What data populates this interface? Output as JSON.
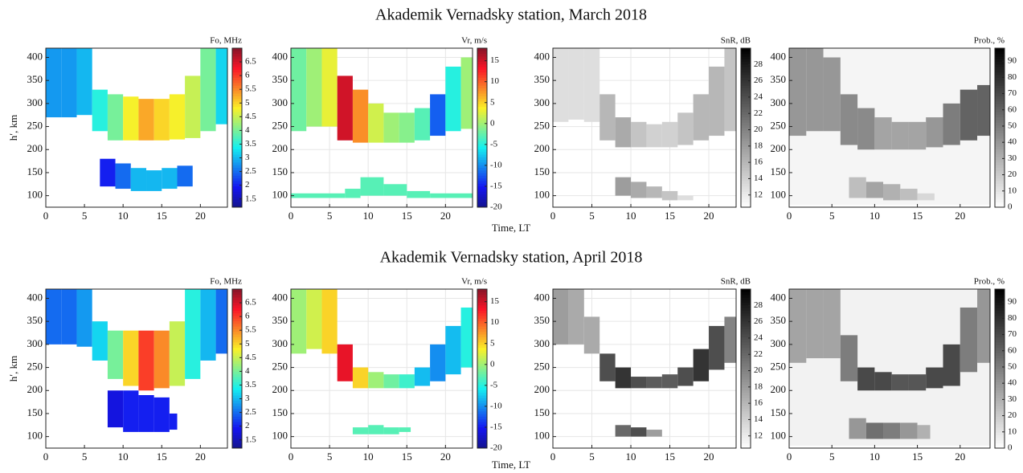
{
  "rows": [
    {
      "title": "Akademik Vernadsky station, March 2018",
      "x_label": "Time, LT"
    },
    {
      "title": "Akademik Vernadsky station, April 2018",
      "x_label": "Time, LT"
    }
  ],
  "chart_data": [
    {
      "type": "heatmap",
      "ylabel": "h′, km",
      "xlim": [
        0,
        23.5
      ],
      "ylim": [
        75,
        420
      ],
      "xticks": [
        0,
        5,
        10,
        15,
        20
      ],
      "yticks": [
        100,
        150,
        200,
        250,
        300,
        350,
        400
      ],
      "grid": false,
      "colorbar": {
        "label": "Fo, MHz",
        "lim": [
          1.2,
          7
        ],
        "ticks": [
          1.5,
          2,
          2.5,
          3,
          3.5,
          4,
          4.5,
          5,
          5.5,
          6,
          6.5
        ],
        "colormap": "jet"
      },
      "layers": [
        {
          "bins": [
            0,
            2,
            4,
            6,
            8,
            10,
            12,
            14,
            16,
            18,
            20,
            22,
            23.5
          ],
          "bottom": [
            270,
            270,
            275,
            240,
            220,
            220,
            220,
            220,
            222,
            225,
            240,
            255
          ],
          "top": [
            420,
            420,
            420,
            330,
            320,
            315,
            310,
            310,
            320,
            360,
            420,
            420
          ],
          "values": [
            2.8,
            2.8,
            3,
            3.5,
            4,
            4.8,
            5.3,
            5,
            4.8,
            4.5,
            4,
            3.2
          ]
        },
        {
          "bins": [
            7,
            9,
            11,
            13,
            15,
            17,
            19
          ],
          "bottom": [
            120,
            115,
            110,
            110,
            115,
            120
          ],
          "top": [
            180,
            170,
            160,
            155,
            160,
            165
          ],
          "values": [
            2,
            2.5,
            3,
            3,
            3,
            2.5
          ]
        }
      ]
    },
    {
      "type": "heatmap",
      "xlim": [
        0,
        23.5
      ],
      "ylim": [
        75,
        420
      ],
      "xticks": [
        0,
        5,
        10,
        15,
        20
      ],
      "yticks": [
        100,
        150,
        200,
        250,
        300,
        350,
        400
      ],
      "grid": true,
      "colorbar": {
        "label": "Vr, m/s",
        "lim": [
          -20,
          18
        ],
        "ticks": [
          -20,
          -15,
          -10,
          -5,
          0,
          5,
          10,
          15
        ],
        "colormap": "jet"
      },
      "layers": [
        {
          "bins": [
            0,
            2,
            4,
            6,
            8,
            10,
            12,
            14,
            16,
            18,
            20,
            22,
            23.5
          ],
          "bottom": [
            240,
            250,
            250,
            220,
            215,
            215,
            215,
            215,
            220,
            230,
            240,
            245
          ],
          "top": [
            420,
            420,
            420,
            360,
            330,
            300,
            280,
            280,
            290,
            320,
            380,
            400
          ],
          "values": [
            -2,
            0,
            3,
            15,
            8,
            2,
            0,
            -1,
            -3,
            -12,
            -5,
            0
          ]
        },
        {
          "bins": [
            0,
            7,
            9,
            12,
            15,
            18,
            23.5
          ],
          "bottom": [
            95,
            95,
            100,
            100,
            95,
            95
          ],
          "top": [
            105,
            115,
            140,
            125,
            110,
            105
          ],
          "values": [
            -3,
            -3,
            -3,
            -3,
            -3,
            -3
          ]
        }
      ]
    },
    {
      "type": "heatmap",
      "xlim": [
        0,
        23.5
      ],
      "ylim": [
        75,
        420
      ],
      "xticks": [
        0,
        5,
        10,
        15,
        20
      ],
      "yticks": [
        100,
        150,
        200,
        250,
        300,
        350,
        400
      ],
      "grid": true,
      "colorbar": {
        "label": "SnR, dB",
        "lim": [
          10.5,
          30
        ],
        "ticks": [
          12,
          14,
          16,
          18,
          20,
          22,
          24,
          26,
          28
        ],
        "colormap": "gray_r"
      },
      "layers": [
        {
          "bins": [
            0,
            2,
            4,
            6,
            8,
            10,
            12,
            14,
            16,
            18,
            20,
            22,
            23.5
          ],
          "bottom": [
            260,
            265,
            260,
            220,
            205,
            205,
            205,
            205,
            210,
            220,
            230,
            240
          ],
          "top": [
            420,
            420,
            420,
            320,
            270,
            260,
            255,
            260,
            280,
            320,
            380,
            420
          ],
          "values": [
            13,
            13,
            13,
            16,
            17,
            15,
            14,
            14,
            15,
            16,
            16,
            15
          ]
        },
        {
          "bins": [
            8,
            10,
            12,
            14,
            16,
            18
          ],
          "bottom": [
            100,
            95,
            95,
            90,
            90
          ],
          "top": [
            140,
            130,
            120,
            110,
            100
          ],
          "values": [
            18,
            17,
            16,
            15,
            13
          ]
        }
      ]
    },
    {
      "type": "heatmap",
      "xlim": [
        0,
        23.5
      ],
      "ylim": [
        75,
        420
      ],
      "xticks": [
        0,
        5,
        10,
        15,
        20
      ],
      "yticks": [
        100,
        150,
        200,
        250,
        300,
        350,
        400
      ],
      "grid": true,
      "colorbar": {
        "label": "Prob., %",
        "lim": [
          0,
          98
        ],
        "ticks": [
          0,
          10,
          20,
          30,
          40,
          50,
          60,
          70,
          80,
          90
        ],
        "colormap": "gray_r"
      },
      "layers": [
        {
          "bins": [
            0,
            23.5
          ],
          "bottom": [
            80
          ],
          "top": [
            420
          ],
          "values": [
            4
          ]
        },
        {
          "bins": [
            0,
            2,
            4,
            6,
            8,
            10,
            12,
            14,
            16,
            18,
            20,
            22,
            23.5
          ],
          "bottom": [
            230,
            240,
            240,
            210,
            200,
            200,
            200,
            200,
            205,
            210,
            220,
            230
          ],
          "top": [
            420,
            420,
            400,
            320,
            290,
            270,
            260,
            260,
            270,
            300,
            330,
            340
          ],
          "values": [
            40,
            40,
            40,
            45,
            45,
            35,
            35,
            35,
            40,
            50,
            60,
            60
          ]
        },
        {
          "bins": [
            7,
            9,
            11,
            13,
            15,
            17
          ],
          "bottom": [
            95,
            95,
            90,
            90,
            90
          ],
          "top": [
            140,
            130,
            125,
            115,
            105
          ],
          "values": [
            25,
            35,
            30,
            25,
            15
          ]
        }
      ]
    },
    {
      "type": "heatmap",
      "ylabel": "h′, km",
      "xlim": [
        0,
        23.5
      ],
      "ylim": [
        75,
        420
      ],
      "xticks": [
        0,
        5,
        10,
        15,
        20
      ],
      "yticks": [
        100,
        150,
        200,
        250,
        300,
        350,
        400
      ],
      "grid": false,
      "colorbar": {
        "label": "Fo, MHz",
        "lim": [
          1.2,
          7
        ],
        "ticks": [
          1.5,
          2,
          2.5,
          3,
          3.5,
          4,
          4.5,
          5,
          5.5,
          6,
          6.5
        ],
        "colormap": "jet"
      },
      "layers": [
        {
          "bins": [
            0,
            2,
            4,
            6,
            8,
            10,
            12,
            14,
            16,
            18,
            20,
            22,
            23.5
          ],
          "bottom": [
            300,
            300,
            295,
            265,
            225,
            210,
            200,
            205,
            210,
            225,
            265,
            280
          ],
          "top": [
            420,
            420,
            420,
            350,
            330,
            330,
            330,
            330,
            350,
            420,
            420,
            420
          ],
          "values": [
            2.5,
            2.5,
            2.8,
            3.2,
            4,
            5,
            6,
            5.5,
            4.5,
            3.5,
            3,
            2.5
          ]
        },
        {
          "bins": [
            8,
            10,
            12,
            14,
            16,
            17
          ],
          "bottom": [
            120,
            110,
            110,
            110,
            115
          ],
          "top": [
            200,
            200,
            190,
            185,
            150
          ],
          "values": [
            1.8,
            2,
            2,
            2,
            2
          ]
        }
      ]
    },
    {
      "type": "heatmap",
      "xlim": [
        0,
        23.5
      ],
      "ylim": [
        75,
        420
      ],
      "xticks": [
        0,
        5,
        10,
        15,
        20
      ],
      "yticks": [
        100,
        150,
        200,
        250,
        300,
        350,
        400
      ],
      "grid": true,
      "colorbar": {
        "label": "Vr, m/s",
        "lim": [
          -20,
          18
        ],
        "ticks": [
          -20,
          -15,
          -10,
          -5,
          0,
          5,
          10,
          15
        ],
        "colormap": "jet"
      },
      "layers": [
        {
          "bins": [
            0,
            2,
            4,
            6,
            8,
            10,
            12,
            14,
            16,
            18,
            20,
            22,
            23.5
          ],
          "bottom": [
            280,
            290,
            280,
            220,
            205,
            205,
            205,
            205,
            210,
            220,
            235,
            250
          ],
          "top": [
            420,
            420,
            420,
            300,
            250,
            240,
            235,
            235,
            250,
            300,
            340,
            380
          ],
          "values": [
            0,
            2,
            5,
            14,
            5,
            0,
            -2,
            -4,
            -8,
            -10,
            -8,
            -5
          ]
        },
        {
          "bins": [
            8,
            10,
            12,
            14,
            15.5
          ],
          "bottom": [
            105,
            105,
            105,
            110
          ],
          "top": [
            120,
            125,
            120,
            120
          ],
          "values": [
            -3,
            -3,
            -3,
            -3
          ]
        }
      ]
    },
    {
      "type": "heatmap",
      "xlim": [
        0,
        23.5
      ],
      "ylim": [
        75,
        420
      ],
      "xticks": [
        0,
        5,
        10,
        15,
        20
      ],
      "yticks": [
        100,
        150,
        200,
        250,
        300,
        350,
        400
      ],
      "grid": true,
      "colorbar": {
        "label": "SnR, dB",
        "lim": [
          10.5,
          30
        ],
        "ticks": [
          12,
          14,
          16,
          18,
          20,
          22,
          24,
          26,
          28
        ],
        "colormap": "gray_r"
      },
      "layers": [
        {
          "bins": [
            0,
            2,
            4,
            6,
            8,
            10,
            12,
            14,
            16,
            18,
            20,
            22,
            23.5
          ],
          "bottom": [
            300,
            300,
            280,
            220,
            205,
            205,
            205,
            205,
            210,
            220,
            245,
            260
          ],
          "top": [
            420,
            420,
            360,
            280,
            250,
            230,
            230,
            235,
            250,
            290,
            340,
            360
          ],
          "values": [
            18,
            17,
            17,
            24,
            26,
            24,
            23,
            23,
            24,
            26,
            24,
            20
          ]
        },
        {
          "bins": [
            8,
            10,
            12,
            14
          ],
          "bottom": [
            100,
            100,
            100
          ],
          "top": [
            125,
            120,
            115
          ],
          "values": [
            22,
            24,
            18
          ]
        }
      ]
    },
    {
      "type": "heatmap",
      "xlim": [
        0,
        23.5
      ],
      "ylim": [
        75,
        420
      ],
      "xticks": [
        0,
        5,
        10,
        15,
        20
      ],
      "yticks": [
        100,
        150,
        200,
        250,
        300,
        350,
        400
      ],
      "grid": true,
      "colorbar": {
        "label": "Prob., %",
        "lim": [
          0,
          98
        ],
        "ticks": [
          0,
          10,
          20,
          30,
          40,
          50,
          60,
          70,
          80,
          90
        ],
        "colormap": "gray_r"
      },
      "layers": [
        {
          "bins": [
            0,
            23.5
          ],
          "bottom": [
            80
          ],
          "top": [
            420
          ],
          "values": [
            5
          ]
        },
        {
          "bins": [
            0,
            2,
            4,
            6,
            8,
            10,
            12,
            14,
            16,
            18,
            20,
            22,
            23.5
          ],
          "bottom": [
            260,
            270,
            270,
            220,
            200,
            200,
            200,
            200,
            205,
            210,
            240,
            260
          ],
          "top": [
            420,
            420,
            420,
            320,
            250,
            240,
            235,
            235,
            250,
            300,
            380,
            420
          ],
          "values": [
            35,
            35,
            35,
            50,
            70,
            70,
            65,
            65,
            70,
            70,
            50,
            40
          ]
        },
        {
          "bins": [
            7,
            9,
            11,
            13,
            15,
            16.5
          ],
          "bottom": [
            95,
            95,
            95,
            95,
            95
          ],
          "top": [
            140,
            130,
            130,
            130,
            125
          ],
          "values": [
            40,
            55,
            50,
            40,
            30
          ]
        }
      ]
    }
  ]
}
